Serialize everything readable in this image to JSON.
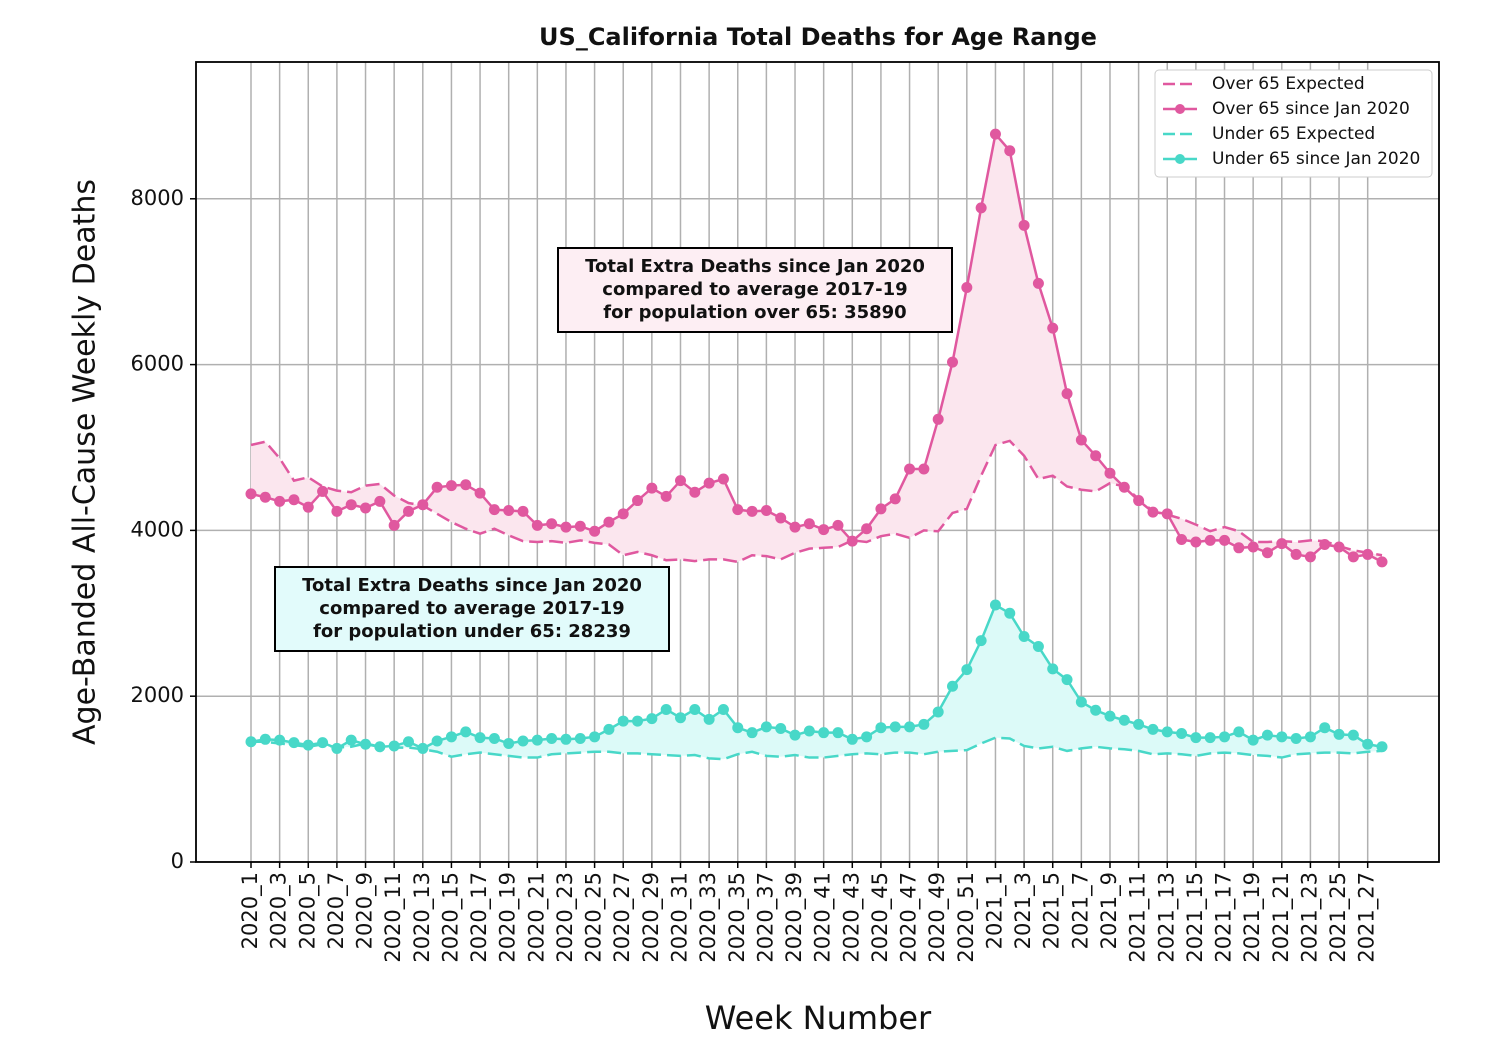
{
  "chart_data": {
    "type": "line",
    "title": "US_California Total Deaths for Age Range",
    "x_label": "Week Number",
    "y_label": "Age-Banded All-Cause Weekly Deaths",
    "categories": [
      "2020_1",
      null,
      "2020_3",
      null,
      "2020_5",
      null,
      "2020_7",
      null,
      "2020_9",
      null,
      "2020_11",
      null,
      "2020_13",
      null,
      "2020_15",
      null,
      "2020_17",
      null,
      "2020_19",
      null,
      "2020_21",
      null,
      "2020_23",
      null,
      "2020_25",
      null,
      "2020_27",
      null,
      "2020_29",
      null,
      "2020_31",
      null,
      "2020_33",
      null,
      "2020_35",
      null,
      "2020_37",
      null,
      "2020_39",
      null,
      "2020_41",
      null,
      "2020_43",
      null,
      "2020_45",
      null,
      "2020_47",
      null,
      "2020_49",
      null,
      "2020_51",
      null,
      "2021_1",
      null,
      "2021_3",
      null,
      "2021_5",
      null,
      "2021_7",
      null,
      "2021_9",
      null,
      "2021_11",
      null,
      "2021_13",
      null,
      "2021_15",
      null,
      "2021_17",
      null,
      "2021_19",
      null,
      "2021_21",
      null,
      "2021_23",
      null,
      "2021_25",
      null,
      "2021_27",
      null
    ],
    "ylim": [
      0,
      9650
    ],
    "yticks": [
      0,
      2000,
      4000,
      6000,
      8000
    ],
    "grid": true,
    "legend": "upper right",
    "series": [
      {
        "name": "Over 65 Expected",
        "color": "#e0589f",
        "linestyle": "dashed",
        "values": [
          5030,
          5070,
          4870,
          4600,
          4640,
          4530,
          4480,
          4460,
          4540,
          4560,
          4420,
          4330,
          4300,
          4200,
          4100,
          4020,
          3960,
          4020,
          3940,
          3870,
          3860,
          3870,
          3850,
          3880,
          3850,
          3830,
          3700,
          3740,
          3700,
          3640,
          3650,
          3630,
          3650,
          3650,
          3620,
          3700,
          3690,
          3650,
          3730,
          3780,
          3790,
          3800,
          3880,
          3860,
          3930,
          3960,
          3910,
          4000,
          3990,
          4210,
          4260,
          4660,
          5030,
          5080,
          4900,
          4620,
          4660,
          4530,
          4490,
          4470,
          4570,
          4530,
          4380,
          4230,
          4190,
          4140,
          4070,
          3990,
          4040,
          3990,
          3860,
          3860,
          3870,
          3860,
          3880,
          3870,
          3810,
          3760,
          3730,
          3700
        ]
      },
      {
        "name": "Over 65 since Jan 2020",
        "color": "#e0589f",
        "linestyle": "solid",
        "marker": "o",
        "fill": "#fbe6ee",
        "values": [
          4440,
          4400,
          4350,
          4370,
          4280,
          4470,
          4230,
          4310,
          4270,
          4350,
          4060,
          4230,
          4310,
          4520,
          4540,
          4550,
          4450,
          4250,
          4240,
          4230,
          4060,
          4080,
          4040,
          4050,
          3990,
          4100,
          4200,
          4360,
          4510,
          4410,
          4600,
          4460,
          4570,
          4620,
          4250,
          4230,
          4240,
          4150,
          4040,
          4080,
          4010,
          4060,
          3870,
          4020,
          4260,
          4380,
          4740,
          4740,
          5340,
          6030,
          6930,
          7890,
          8780,
          8580,
          7680,
          6980,
          6440,
          5650,
          5090,
          4900,
          4690,
          4520,
          4360,
          4220,
          4200,
          3890,
          3860,
          3880,
          3880,
          3790,
          3800,
          3730,
          3840,
          3710,
          3680,
          3830,
          3800,
          3680,
          3710,
          3620
        ]
      },
      {
        "name": "Under 65 Expected",
        "color": "#48d8c8",
        "linestyle": "dashed",
        "values": [
          1450,
          1450,
          1430,
          1410,
          1390,
          1420,
          1380,
          1390,
          1430,
          1390,
          1380,
          1380,
          1360,
          1330,
          1270,
          1300,
          1320,
          1300,
          1280,
          1260,
          1260,
          1300,
          1310,
          1320,
          1330,
          1330,
          1310,
          1310,
          1300,
          1290,
          1280,
          1290,
          1250,
          1240,
          1300,
          1330,
          1280,
          1270,
          1290,
          1260,
          1260,
          1280,
          1300,
          1310,
          1300,
          1320,
          1320,
          1300,
          1330,
          1340,
          1350,
          1430,
          1500,
          1490,
          1400,
          1370,
          1390,
          1340,
          1370,
          1390,
          1370,
          1360,
          1340,
          1300,
          1310,
          1300,
          1280,
          1310,
          1320,
          1310,
          1290,
          1280,
          1260,
          1300,
          1310,
          1320,
          1320,
          1310,
          1330,
          1340
        ]
      },
      {
        "name": "Under 65 since Jan 2020",
        "color": "#48d8c8",
        "linestyle": "solid",
        "marker": "o",
        "fill": "#dcfaf8",
        "values": [
          1450,
          1480,
          1470,
          1440,
          1410,
          1440,
          1370,
          1470,
          1420,
          1390,
          1400,
          1450,
          1370,
          1460,
          1510,
          1570,
          1500,
          1490,
          1430,
          1460,
          1470,
          1490,
          1480,
          1490,
          1510,
          1600,
          1700,
          1700,
          1730,
          1840,
          1740,
          1840,
          1720,
          1840,
          1620,
          1560,
          1630,
          1610,
          1530,
          1580,
          1560,
          1560,
          1480,
          1510,
          1620,
          1630,
          1630,
          1660,
          1810,
          2120,
          2320,
          2670,
          3100,
          3000,
          2720,
          2600,
          2330,
          2200,
          1930,
          1830,
          1760,
          1710,
          1660,
          1600,
          1570,
          1550,
          1500,
          1500,
          1510,
          1570,
          1470,
          1530,
          1510,
          1490,
          1510,
          1620,
          1540,
          1530,
          1420,
          1390
        ]
      }
    ],
    "annotations": [
      {
        "lines": [
          "Total Extra Deaths since Jan 2020",
          "compared to average 2017-19",
          "for population over 65: 35890"
        ],
        "color": "#fdeef3"
      },
      {
        "lines": [
          "Total Extra Deaths since Jan 2020",
          "compared to average 2017-19",
          "for population under 65: 28239"
        ],
        "color": "#e2fbfb"
      }
    ]
  }
}
